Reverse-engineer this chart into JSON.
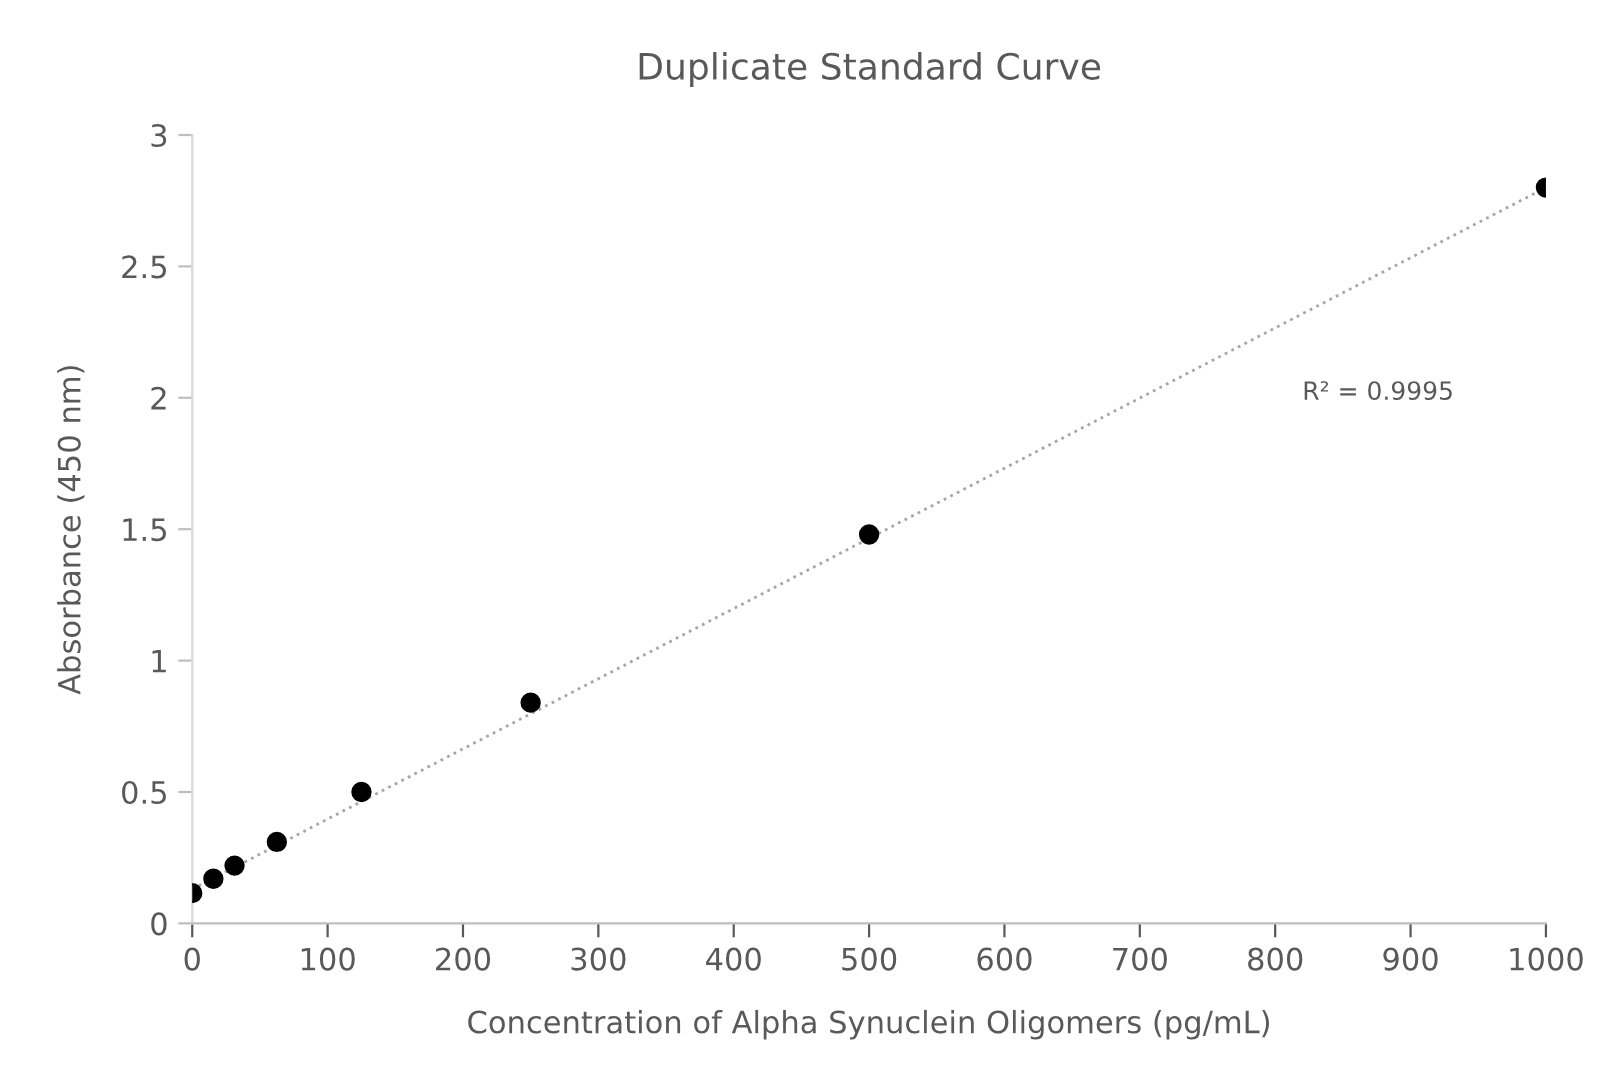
{
  "chart_data": {
    "type": "scatter",
    "title": "Duplicate Standard Curve",
    "xlabel": "Concentration of Alpha Synuclein Oligomers (pg/mL)",
    "ylabel": "Absorbance (450 nm)",
    "series": [
      {
        "color": "#000000",
        "marker": "circle",
        "x": [
          0,
          15.6,
          31.25,
          62.5,
          125,
          250,
          500,
          1000
        ],
        "values": [
          0.115,
          0.17,
          0.22,
          0.31,
          0.5,
          0.84,
          1.48,
          2.8
        ]
      },
      {
        "type": "line",
        "color": "#a6a6a6",
        "line_style": "dotted",
        "marker": "none",
        "x": [
          0,
          1000
        ],
        "values": [
          0.13,
          2.8
        ]
      }
    ],
    "annotations": [
      "R² = 0.9995"
    ],
    "xlim": [
      0,
      1000
    ],
    "xticks": [
      0,
      100,
      200,
      300,
      400,
      500,
      600,
      700,
      800,
      900,
      1000
    ],
    "ylim": [
      0,
      3
    ],
    "yticks": [
      0,
      0.5,
      1,
      1.5,
      2,
      2.5,
      3
    ],
    "grid": false,
    "legend": false
  }
}
